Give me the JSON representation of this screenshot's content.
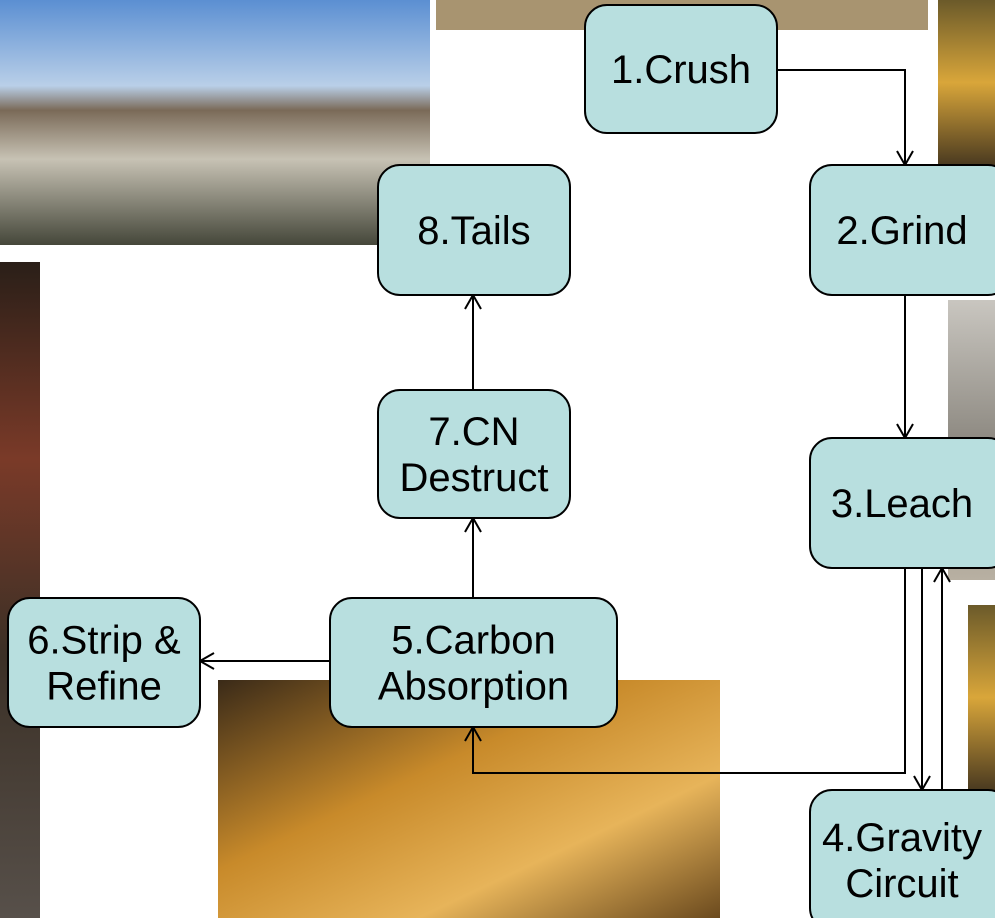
{
  "nodes": [
    {
      "lines": [
        "1.Crush"
      ]
    },
    {
      "lines": [
        "2.Grind"
      ]
    },
    {
      "lines": [
        "3.Leach"
      ]
    },
    {
      "lines": [
        "4.Gravity",
        "Circuit"
      ]
    },
    {
      "lines": [
        "5.Carbon",
        "Absorption"
      ]
    },
    {
      "lines": [
        "6.Strip &",
        "Refine"
      ]
    },
    {
      "lines": [
        "7.CN",
        "Destruct"
      ]
    },
    {
      "lines": [
        "8.Tails"
      ]
    }
  ]
}
